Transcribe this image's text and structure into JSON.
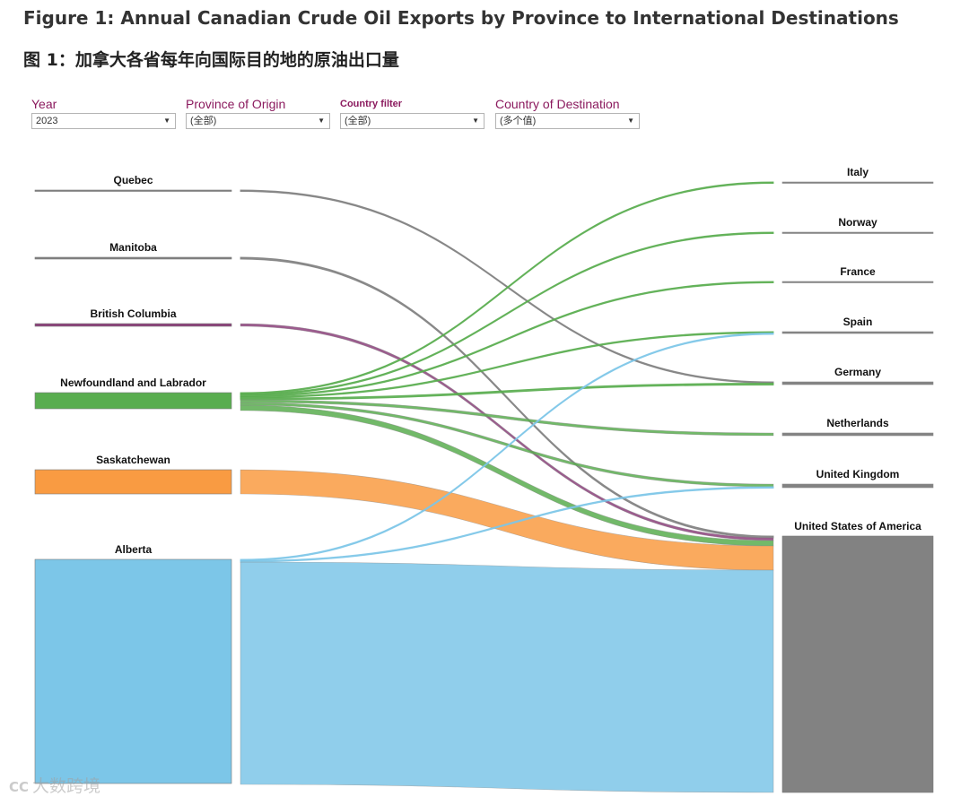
{
  "title_en": "Figure 1: Annual Canadian Crude Oil Exports by Province to International Destinations",
  "title_zh": "图 1：加拿大各省每年向国际目的地的原油出口量",
  "filters": [
    {
      "label": "Year",
      "value": "2023"
    },
    {
      "label": "Province of Origin",
      "value": "(全部)"
    },
    {
      "label": "Country filter",
      "value": "(全部)"
    },
    {
      "label": "Country of Destination",
      "value": "(多个值)"
    }
  ],
  "watermark": {
    "logo": "CC",
    "text": "大数跨境"
  },
  "chart_data": {
    "type": "sankey",
    "units": "relative volume (estimated from band widths)",
    "sources": [
      {
        "id": "quebec",
        "name": "Quebec",
        "color": "#808080"
      },
      {
        "id": "manitoba",
        "name": "Manitoba",
        "color": "#808080"
      },
      {
        "id": "bc",
        "name": "British Columbia",
        "color": "#8b3f7a"
      },
      {
        "id": "nl",
        "name": "Newfoundland and Labrador",
        "color": "#59ad4f"
      },
      {
        "id": "sk",
        "name": "Saskatchewan",
        "color": "#f99b42"
      },
      {
        "id": "ab",
        "name": "Alberta",
        "color": "#7cc6e8"
      }
    ],
    "targets": [
      {
        "id": "italy",
        "name": "Italy"
      },
      {
        "id": "norway",
        "name": "Norway"
      },
      {
        "id": "france",
        "name": "France"
      },
      {
        "id": "spain",
        "name": "Spain"
      },
      {
        "id": "germany",
        "name": "Germany"
      },
      {
        "id": "netherlands",
        "name": "Netherlands"
      },
      {
        "id": "uk",
        "name": "United Kingdom"
      },
      {
        "id": "usa",
        "name": "United States of America"
      }
    ],
    "flows": [
      {
        "source": "quebec",
        "target": "germany",
        "value": 1
      },
      {
        "source": "manitoba",
        "target": "usa",
        "value": 2
      },
      {
        "source": "bc",
        "target": "usa",
        "value": 3
      },
      {
        "source": "nl",
        "target": "italy",
        "value": 1
      },
      {
        "source": "nl",
        "target": "norway",
        "value": 1
      },
      {
        "source": "nl",
        "target": "france",
        "value": 1
      },
      {
        "source": "nl",
        "target": "spain",
        "value": 1
      },
      {
        "source": "nl",
        "target": "germany",
        "value": 2
      },
      {
        "source": "nl",
        "target": "netherlands",
        "value": 3
      },
      {
        "source": "nl",
        "target": "uk",
        "value": 3
      },
      {
        "source": "nl",
        "target": "usa",
        "value": 6
      },
      {
        "source": "sk",
        "target": "usa",
        "value": 27
      },
      {
        "source": "ab",
        "target": "spain",
        "value": 1
      },
      {
        "source": "ab",
        "target": "uk",
        "value": 1
      },
      {
        "source": "ab",
        "target": "usa",
        "value": 248
      }
    ]
  }
}
